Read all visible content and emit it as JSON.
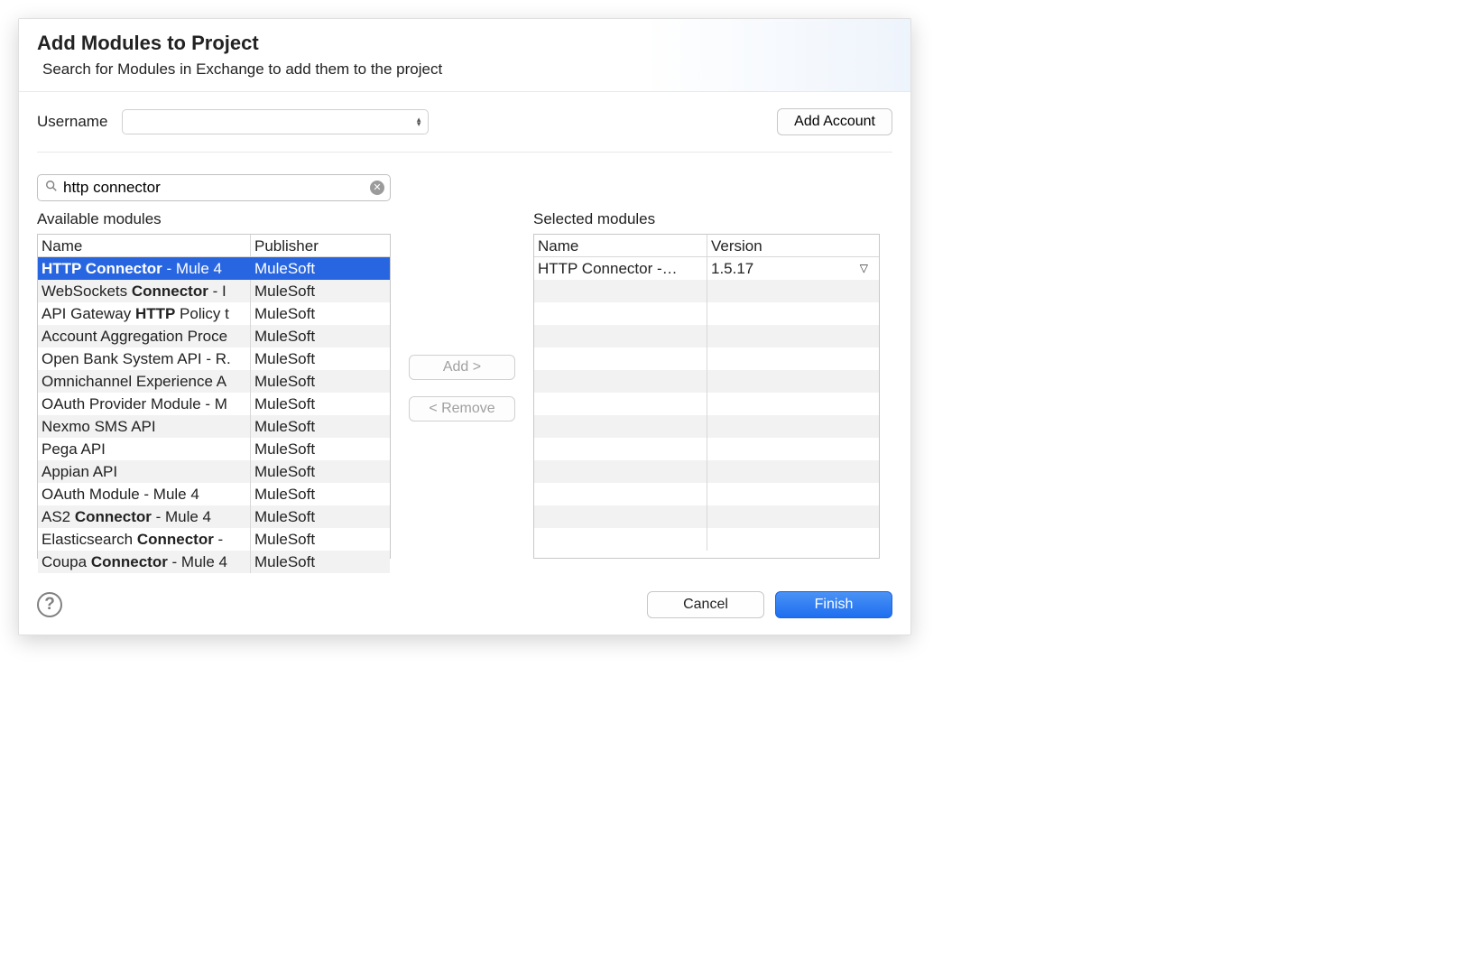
{
  "dialog": {
    "title": "Add Modules to Project",
    "subtitle": "Search for Modules in Exchange to add them to the project"
  },
  "account": {
    "username_label": "Username",
    "username_value": "",
    "add_account_label": "Add Account"
  },
  "search": {
    "value": "http connector"
  },
  "transfer": {
    "add_label": "Add >",
    "remove_label": "< Remove"
  },
  "available": {
    "label": "Available modules",
    "columns": {
      "name": "Name",
      "publisher": "Publisher"
    },
    "rows": [
      {
        "name_parts": [
          {
            "t": "HTTP Connector",
            "b": true
          },
          {
            "t": " - Mule 4",
            "b": false
          }
        ],
        "publisher": "MuleSoft",
        "selected": true
      },
      {
        "name_parts": [
          {
            "t": "WebSockets ",
            "b": false
          },
          {
            "t": "Connector",
            "b": true
          },
          {
            "t": " - I",
            "b": false
          }
        ],
        "publisher": "MuleSoft"
      },
      {
        "name_parts": [
          {
            "t": "API Gateway ",
            "b": false
          },
          {
            "t": "HTTP",
            "b": true
          },
          {
            "t": " Policy t",
            "b": false
          }
        ],
        "publisher": "MuleSoft"
      },
      {
        "name_parts": [
          {
            "t": "Account Aggregation Proce",
            "b": false
          }
        ],
        "publisher": "MuleSoft"
      },
      {
        "name_parts": [
          {
            "t": "Open Bank System API - R.",
            "b": false
          }
        ],
        "publisher": "MuleSoft"
      },
      {
        "name_parts": [
          {
            "t": "Omnichannel Experience A",
            "b": false
          }
        ],
        "publisher": "MuleSoft"
      },
      {
        "name_parts": [
          {
            "t": "OAuth Provider Module - M",
            "b": false
          }
        ],
        "publisher": "MuleSoft"
      },
      {
        "name_parts": [
          {
            "t": "Nexmo SMS API",
            "b": false
          }
        ],
        "publisher": "MuleSoft"
      },
      {
        "name_parts": [
          {
            "t": "Pega API",
            "b": false
          }
        ],
        "publisher": "MuleSoft"
      },
      {
        "name_parts": [
          {
            "t": "Appian API",
            "b": false
          }
        ],
        "publisher": "MuleSoft"
      },
      {
        "name_parts": [
          {
            "t": "OAuth Module - Mule 4",
            "b": false
          }
        ],
        "publisher": "MuleSoft"
      },
      {
        "name_parts": [
          {
            "t": "AS2 ",
            "b": false
          },
          {
            "t": "Connector",
            "b": true
          },
          {
            "t": " - Mule 4",
            "b": false
          }
        ],
        "publisher": "MuleSoft"
      },
      {
        "name_parts": [
          {
            "t": "Elasticsearch ",
            "b": false
          },
          {
            "t": "Connector",
            "b": true
          },
          {
            "t": " -",
            "b": false
          }
        ],
        "publisher": "MuleSoft"
      },
      {
        "name_parts": [
          {
            "t": "Coupa ",
            "b": false
          },
          {
            "t": "Connector",
            "b": true
          },
          {
            "t": " - Mule 4",
            "b": false
          }
        ],
        "publisher": "MuleSoft"
      }
    ]
  },
  "selected": {
    "label": "Selected modules",
    "columns": {
      "name": "Name",
      "version": "Version"
    },
    "rows": [
      {
        "name": "HTTP Connector -…",
        "version": "1.5.17"
      }
    ],
    "blank_rows": 12
  },
  "footer": {
    "cancel_label": "Cancel",
    "finish_label": "Finish"
  },
  "style": {
    "selection_bg": "#2866e1",
    "selection_fg": "#ffffff",
    "alt_row_bg": "#f2f2f2",
    "border_color": "#c8c8c8"
  }
}
